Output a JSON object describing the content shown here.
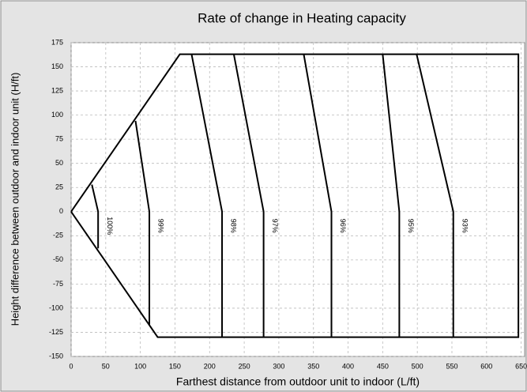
{
  "chart_data": {
    "type": "line",
    "title": "Rate of change in Heating capacity",
    "xlabel": "Farthest distance from outdoor unit to indoor (L/ft)",
    "ylabel": "Height difference between outdoor and indoor unit (H/ft)",
    "xlim": [
      0,
      655
    ],
    "ylim": [
      -150,
      175
    ],
    "xticks": [
      0,
      50,
      100,
      150,
      200,
      250,
      300,
      350,
      400,
      450,
      500,
      550,
      600,
      650
    ],
    "yticks": [
      175,
      150,
      125,
      100,
      75,
      50,
      25,
      0,
      -25,
      -50,
      -75,
      -100,
      -125,
      -150
    ],
    "grid": true,
    "outline": {
      "color": "#000000",
      "x": [
        0,
        157,
        646,
        646,
        125,
        0
      ],
      "values": [
        0,
        163,
        163,
        -130,
        -130,
        0
      ]
    },
    "series": [
      {
        "name": "100%",
        "color": "#000000",
        "x": [
          30,
          39,
          39
        ],
        "values": [
          28,
          0,
          -38
        ]
      },
      {
        "name": "99%",
        "color": "#000000",
        "x": [
          93,
          113,
          113
        ],
        "values": [
          94,
          0,
          -117
        ]
      },
      {
        "name": "98%",
        "color": "#000000",
        "x": [
          174,
          218,
          218
        ],
        "values": [
          163,
          0,
          -130
        ]
      },
      {
        "name": "97%",
        "color": "#000000",
        "x": [
          235,
          278,
          278
        ],
        "values": [
          163,
          0,
          -130
        ]
      },
      {
        "name": "96%",
        "color": "#000000",
        "x": [
          336,
          376,
          376
        ],
        "values": [
          163,
          0,
          -130
        ]
      },
      {
        "name": "95%",
        "color": "#000000",
        "x": [
          450,
          474,
          474
        ],
        "values": [
          163,
          0,
          -130
        ]
      },
      {
        "name": "93%",
        "color": "#000000",
        "x": [
          499,
          552,
          552
        ],
        "values": [
          163,
          0,
          -130
        ]
      }
    ]
  }
}
